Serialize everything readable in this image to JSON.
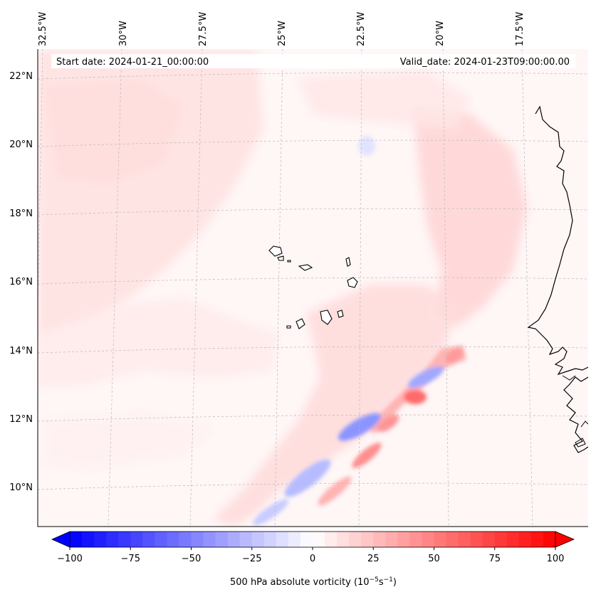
{
  "header": {
    "start_date": "Start date: 2024-01-21_00:00:00",
    "valid_date": "Valid_date: 2024-01-23T09:00:00.00"
  },
  "map": {
    "lon_labels": [
      "32.5°W",
      "30°W",
      "27.5°W",
      "25°W",
      "22.5°W",
      "20°W",
      "17.5°W"
    ],
    "lat_labels": [
      "22°N",
      "20°N",
      "18°N",
      "16°N",
      "14°N",
      "12°N",
      "10°N"
    ]
  },
  "colorbar": {
    "label": "500 hPa absolute vorticity (10",
    "label_exp1": "−5",
    "label_mid": "s",
    "label_exp2": "−1",
    "label_end": ")",
    "tick_labels": [
      "−100",
      "−75",
      "−50",
      "−25",
      "0",
      "25",
      "50",
      "75",
      "100"
    ],
    "colors": {
      "min": "#0000ff",
      "mid": "#ffffff",
      "max": "#ff0000"
    }
  }
}
